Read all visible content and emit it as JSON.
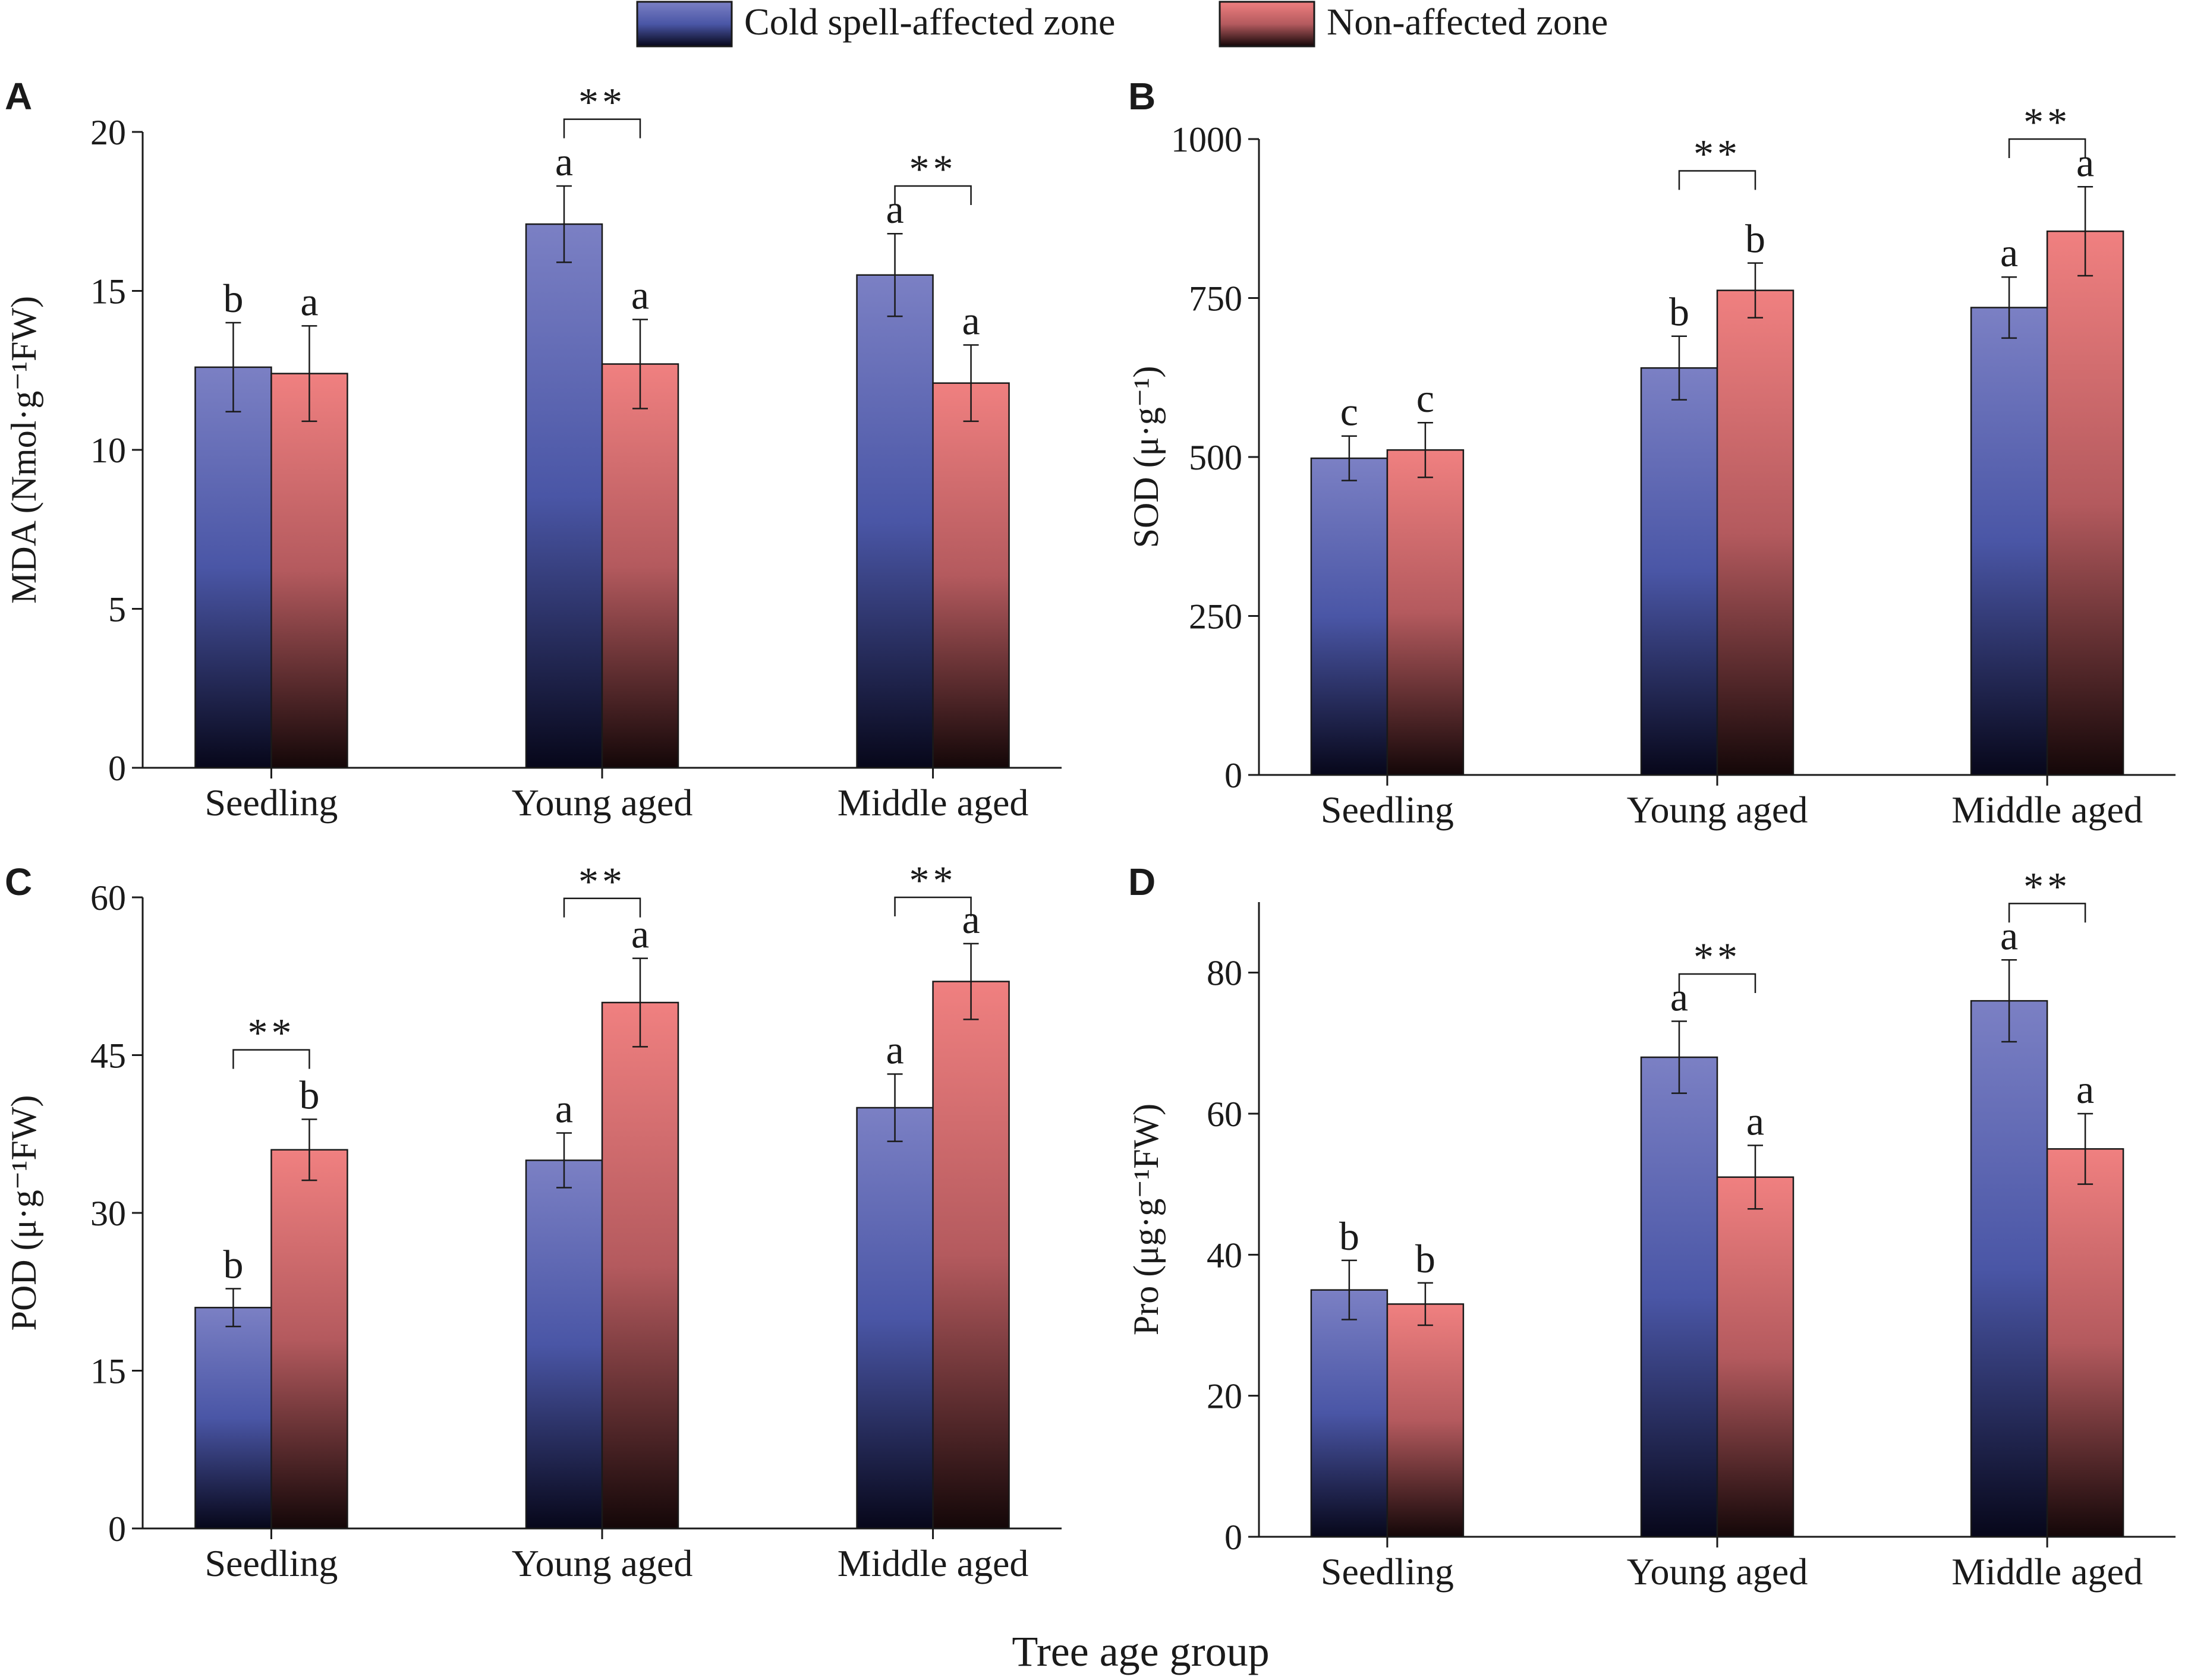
{
  "legend": {
    "series_a": "Cold spell-affected zone",
    "series_b": "Non-affected zone"
  },
  "colors": {
    "series_a_top": "#7b80c4",
    "series_a_mid": "#4a56a6",
    "series_a_bottom": "#07071a",
    "series_b_top": "#f08080",
    "series_b_mid": "#b45a5e",
    "series_b_bottom": "#140708",
    "axis": "#1a1a1a"
  },
  "shared_xlabel": "Tree age group",
  "chart_data": [
    {
      "type": "bar",
      "panel": "A",
      "ylabel": "MDA (Nmol·g⁻¹FW)",
      "ylim": [
        0,
        20
      ],
      "yticks": [
        "0",
        "5",
        "10",
        "15",
        "20"
      ],
      "categories": [
        "Seedling",
        "Young aged",
        "Middle aged"
      ],
      "series": [
        {
          "name": "Cold spell-affected zone",
          "values": [
            12.6,
            17.1,
            15.5
          ],
          "errors": [
            1.4,
            1.2,
            1.3
          ],
          "letters": [
            "b",
            "a",
            "a"
          ]
        },
        {
          "name": "Non-affected zone",
          "values": [
            12.4,
            12.7,
            12.1
          ],
          "errors": [
            1.5,
            1.4,
            1.2
          ],
          "letters": [
            "a",
            "a",
            "a"
          ]
        }
      ],
      "significance": [
        {
          "category": 1,
          "label": "**",
          "level": 20.4
        },
        {
          "category": 2,
          "label": "**",
          "level": 18.3
        }
      ]
    },
    {
      "type": "bar",
      "panel": "B",
      "ylabel": "SOD (μ·g⁻¹)",
      "ylim": [
        0,
        1000
      ],
      "yticks": [
        "0",
        "250",
        "500",
        "750",
        "1000"
      ],
      "categories": [
        "Seedling",
        "Young aged",
        "Middle aged"
      ],
      "series": [
        {
          "name": "Cold spell-affected zone",
          "values": [
            498,
            640,
            735
          ],
          "errors": [
            35,
            50,
            48
          ],
          "letters": [
            "c",
            "b",
            "a"
          ]
        },
        {
          "name": "Non-affected zone",
          "values": [
            511,
            762,
            855
          ],
          "errors": [
            43,
            43,
            70
          ],
          "letters": [
            "c",
            "b",
            "a"
          ]
        }
      ],
      "significance": [
        {
          "category": 1,
          "label": "**",
          "level": 950
        },
        {
          "category": 2,
          "label": "**",
          "level": 1000
        }
      ]
    },
    {
      "type": "bar",
      "panel": "C",
      "ylabel": "POD (μ·g⁻¹FW)",
      "ylim": [
        0,
        60
      ],
      "yticks": [
        "0",
        "15",
        "30",
        "45",
        "60"
      ],
      "categories": [
        "Seedling",
        "Young aged",
        "Middle aged"
      ],
      "series": [
        {
          "name": "Cold spell-affected zone",
          "values": [
            21,
            35,
            40
          ],
          "errors": [
            1.8,
            2.6,
            3.2
          ],
          "letters": [
            "b",
            "a",
            "a"
          ]
        },
        {
          "name": "Non-affected zone",
          "values": [
            36,
            50,
            52
          ],
          "errors": [
            2.9,
            4.2,
            3.6
          ],
          "letters": [
            "b",
            "a",
            "a"
          ]
        }
      ],
      "significance": [
        {
          "category": 0,
          "label": "**",
          "level": 45.5
        },
        {
          "category": 1,
          "label": "**",
          "level": 59.9
        },
        {
          "category": 2,
          "label": "**",
          "level": 60.0
        }
      ]
    },
    {
      "type": "bar",
      "panel": "D",
      "ylabel": "Pro (μg·g⁻¹FW)",
      "ylim": [
        0,
        90
      ],
      "yticks": [
        "0",
        "20",
        "40",
        "60",
        "80"
      ],
      "categories": [
        "Seedling",
        "Young aged",
        "Middle aged"
      ],
      "series": [
        {
          "name": "Cold spell-affected zone",
          "values": [
            35,
            68,
            76
          ],
          "errors": [
            4.2,
            5.1,
            5.8
          ],
          "letters": [
            "b",
            "a",
            "a"
          ]
        },
        {
          "name": "Non-affected zone",
          "values": [
            33,
            51,
            55
          ],
          "errors": [
            3.0,
            4.5,
            5.0
          ],
          "letters": [
            "b",
            "a",
            "a"
          ]
        }
      ],
      "significance": [
        {
          "category": 1,
          "label": "**",
          "level": 79.8
        },
        {
          "category": 2,
          "label": "**",
          "level": 89.8
        }
      ]
    }
  ]
}
